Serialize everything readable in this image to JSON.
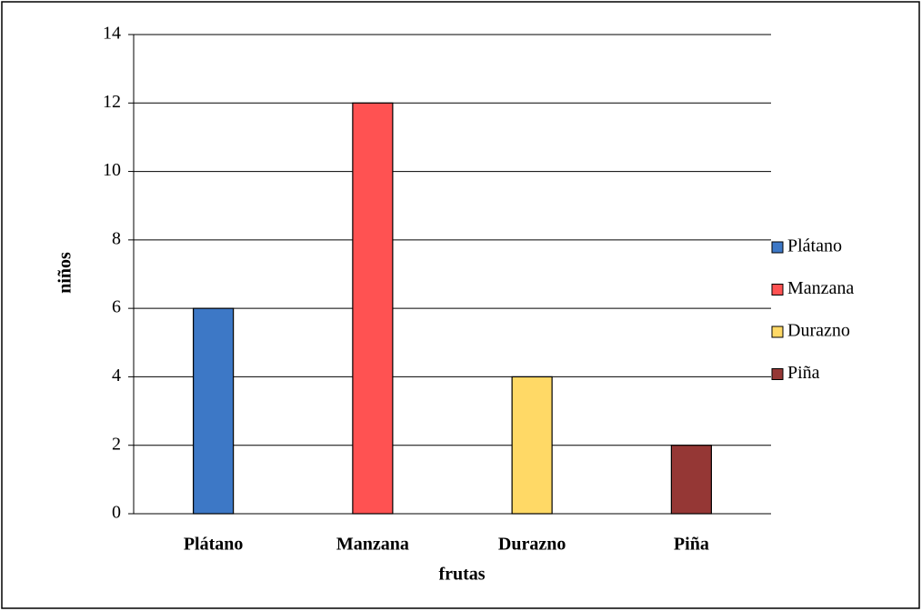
{
  "chart_data": {
    "type": "bar",
    "categories": [
      "Plátano",
      "Manzana",
      "Durazno",
      "Piña"
    ],
    "values": [
      6,
      12,
      4,
      2
    ],
    "colors": [
      "#3d78c6",
      "#ff5252",
      "#ffd966",
      "#953735"
    ],
    "ylim": [
      0,
      14
    ],
    "yticks": [
      0,
      2,
      4,
      6,
      8,
      10,
      12,
      14
    ],
    "xlabel": "frutas",
    "ylabel": "niños",
    "grid": true,
    "legend": "right"
  }
}
